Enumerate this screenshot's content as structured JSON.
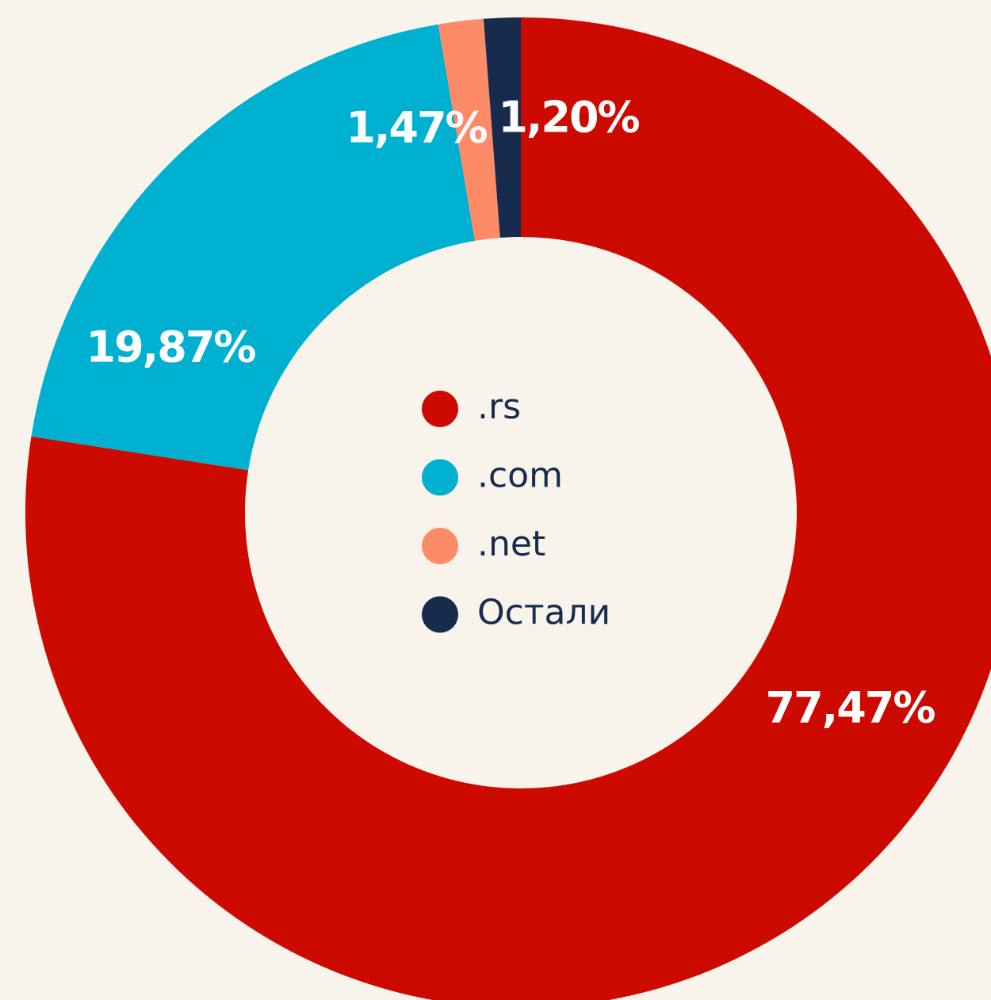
{
  "chart_data": {
    "type": "donut",
    "categories": [
      ".rs",
      ".com",
      ".net",
      "Остали"
    ],
    "values": [
      77.47,
      19.87,
      1.47,
      1.2
    ],
    "value_labels": [
      "77,47%",
      "19,87%",
      "1,47%",
      "1,20%"
    ],
    "colors": [
      "#cc0a00",
      "#00b0d0",
      "#ff8a68",
      "#172b4d"
    ],
    "legend": "center"
  }
}
